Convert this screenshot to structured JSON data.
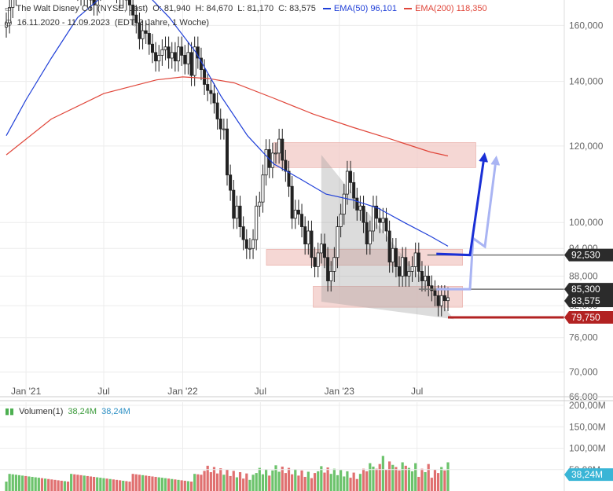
{
  "header": {
    "instrument": "The Walt Disney Co. (NYSE, Last)",
    "open": "O: 81,940",
    "high": "H: 84,670",
    "low": "L: 81,170",
    "close": "C: 83,575",
    "ema50_label": "EMA(50)",
    "ema50_value": "96,101",
    "ema200_label": "EMA(200)",
    "ema200_value": "118,350",
    "range": "16.11.2020 - 11.09.2023",
    "period": "(EDT, 3 Jahre, 1 Woche)"
  },
  "volume_header": {
    "label": "Volumen(1)",
    "value1": "38,24M",
    "value2": "38,24M"
  },
  "colors": {
    "ema50": "#1f3fd8",
    "ema200": "#e0463a",
    "zone": "#f2cdc9",
    "up_vol": "#6cc36c",
    "down_vol": "#e07070",
    "arrow_dark": "#1a2fd6",
    "arrow_light": "#a9b4f3",
    "red_level": "#b22222",
    "last_volume": "#39b5d6"
  },
  "chart_data": {
    "type": "candlestick",
    "y_scale": "log",
    "ylim": [
      66000,
      170000
    ],
    "y_ticks": [
      "160,000",
      "140,000",
      "120,000",
      "100,000",
      "94,000",
      "88,000",
      "82,000",
      "76,000",
      "70,000",
      "66,000"
    ],
    "y_tick_values": [
      160000,
      140000,
      120000,
      100000,
      94000,
      88000,
      82000,
      76000,
      70000,
      66000
    ],
    "x_ticks": [
      "Jan '21",
      "Jul",
      "Jan '22",
      "Jul",
      "Jan '23",
      "Jul"
    ],
    "x_tick_dates": [
      "2021-01-01",
      "2021-07-01",
      "2022-01-01",
      "2022-07-01",
      "2023-01-01",
      "2023-07-01"
    ],
    "x_range": [
      "2020-11-16",
      "2023-09-11"
    ],
    "price_labels": [
      {
        "text": "92,530",
        "value": 92530,
        "style": "dark"
      },
      {
        "text": "85,300",
        "value": 85300,
        "style": "dark"
      },
      {
        "text": "83,575",
        "value": 83575,
        "style": "dark"
      },
      {
        "text": "79,750",
        "value": 79750,
        "style": "red"
      }
    ],
    "zones": [
      {
        "from": "2022-08-01",
        "to": "2023-11-15",
        "low": 114000,
        "high": 121000
      },
      {
        "from": "2022-07-15",
        "to": "2023-10-15",
        "low": 90300,
        "high": 93800
      },
      {
        "from": "2022-11-01",
        "to": "2023-10-15",
        "low": 81700,
        "high": 85900
      }
    ],
    "ema50": [
      [
        "2020-11-16",
        123000
      ],
      [
        "2021-01-01",
        134000
      ],
      [
        "2021-03-01",
        148000
      ],
      [
        "2021-05-01",
        163000
      ],
      [
        "2021-07-01",
        172000
      ],
      [
        "2021-10-01",
        174000
      ],
      [
        "2021-12-01",
        163000
      ],
      [
        "2022-02-01",
        150000
      ],
      [
        "2022-04-01",
        135000
      ],
      [
        "2022-06-01",
        123000
      ],
      [
        "2022-08-01",
        115000
      ],
      [
        "2022-10-01",
        111000
      ],
      [
        "2022-12-01",
        107000
      ],
      [
        "2023-02-01",
        105500
      ],
      [
        "2023-04-01",
        103500
      ],
      [
        "2023-06-01",
        100000
      ],
      [
        "2023-08-01",
        96800
      ],
      [
        "2023-09-11",
        94500
      ]
    ],
    "ema200": [
      [
        "2020-11-16",
        117500
      ],
      [
        "2021-03-01",
        128000
      ],
      [
        "2021-07-01",
        136000
      ],
      [
        "2021-11-01",
        140500
      ],
      [
        "2022-01-01",
        141500
      ],
      [
        "2022-03-01",
        141000
      ],
      [
        "2022-05-01",
        139500
      ],
      [
        "2022-08-01",
        134500
      ],
      [
        "2022-11-01",
        129500
      ],
      [
        "2023-02-01",
        125500
      ],
      [
        "2023-05-01",
        122000
      ],
      [
        "2023-08-01",
        118300
      ],
      [
        "2023-09-11",
        117200
      ]
    ],
    "weekly_closes": [
      161,
      167,
      172,
      178,
      179,
      183,
      181,
      186,
      187,
      192,
      196,
      189,
      191,
      187,
      185,
      183,
      181,
      178,
      180,
      176,
      177,
      175,
      174,
      172,
      173,
      171,
      170,
      168,
      174,
      176,
      177,
      175,
      179,
      176,
      173,
      171,
      173,
      170,
      168,
      164,
      161,
      155,
      158,
      157,
      153,
      150,
      147,
      149,
      151,
      152,
      148,
      150,
      147,
      152,
      149,
      146,
      150,
      142,
      152,
      148,
      144,
      139,
      137,
      136,
      133,
      128,
      125,
      125,
      112,
      108,
      101,
      104,
      99,
      96,
      94,
      94,
      96,
      104,
      105,
      112,
      119,
      114,
      118,
      118,
      122,
      116,
      113,
      109,
      101,
      103,
      102,
      99,
      95,
      98,
      92,
      90,
      93,
      95,
      92,
      87,
      89,
      92,
      99,
      102,
      107,
      113,
      110,
      106,
      103,
      104,
      100,
      95,
      98,
      104,
      101,
      100,
      101,
      98,
      91,
      94,
      90,
      88,
      92,
      88,
      89,
      90,
      93,
      89,
      87,
      88,
      86,
      85,
      84,
      82,
      84,
      83,
      83.575
    ],
    "volume": {
      "ylim_max": 200,
      "y_ticks": [
        "200,00M",
        "150,00M",
        "100,00M",
        "50,00M"
      ],
      "y_tick_values": [
        200,
        150,
        100,
        50
      ],
      "last_label": "38,24M",
      "last_value": 38.24
    }
  }
}
